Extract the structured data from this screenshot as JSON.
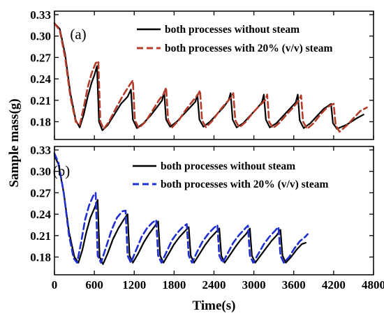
{
  "chart_data": [
    {
      "type": "line",
      "panel_label": "(a)",
      "xlim": [
        0,
        4800
      ],
      "ylim": [
        0.16,
        0.33
      ],
      "x_ticks": [
        0,
        600,
        1200,
        1800,
        2400,
        3000,
        3600,
        4200,
        4800
      ],
      "y_ticks": [
        "0.33",
        "0.30",
        "0.27",
        "0.24",
        "0.21",
        "0.18"
      ],
      "ylabel": "Sample mass(g)",
      "xlabel": "",
      "legend_position": "top-right",
      "series": [
        {
          "name": "both processes without steam",
          "color": "#000000",
          "style": "solid",
          "points": [
            [
              0,
              0.318
            ],
            [
              80,
              0.31
            ],
            [
              160,
              0.275
            ],
            [
              240,
              0.22
            ],
            [
              320,
              0.182
            ],
            [
              380,
              0.172
            ],
            [
              440,
              0.19
            ],
            [
              500,
              0.215
            ],
            [
              560,
              0.235
            ],
            [
              600,
              0.245
            ],
            [
              640,
              0.258
            ],
            [
              670,
              0.18
            ],
            [
              720,
              0.168
            ],
            [
              800,
              0.175
            ],
            [
              900,
              0.19
            ],
            [
              1000,
              0.205
            ],
            [
              1100,
              0.215
            ],
            [
              1150,
              0.225
            ],
            [
              1180,
              0.183
            ],
            [
              1240,
              0.171
            ],
            [
              1340,
              0.178
            ],
            [
              1440,
              0.188
            ],
            [
              1540,
              0.2
            ],
            [
              1620,
              0.21
            ],
            [
              1650,
              0.222
            ],
            [
              1680,
              0.183
            ],
            [
              1740,
              0.173
            ],
            [
              1840,
              0.18
            ],
            [
              1940,
              0.19
            ],
            [
              2040,
              0.2
            ],
            [
              2120,
              0.208
            ],
            [
              2150,
              0.218
            ],
            [
              2180,
              0.183
            ],
            [
              2240,
              0.173
            ],
            [
              2340,
              0.18
            ],
            [
              2440,
              0.19
            ],
            [
              2540,
              0.2
            ],
            [
              2620,
              0.21
            ],
            [
              2650,
              0.22
            ],
            [
              2680,
              0.183
            ],
            [
              2740,
              0.172
            ],
            [
              2840,
              0.178
            ],
            [
              2940,
              0.188
            ],
            [
              3040,
              0.198
            ],
            [
              3120,
              0.207
            ],
            [
              3150,
              0.218
            ],
            [
              3180,
              0.183
            ],
            [
              3240,
              0.172
            ],
            [
              3340,
              0.178
            ],
            [
              3440,
              0.188
            ],
            [
              3540,
              0.198
            ],
            [
              3630,
              0.207
            ],
            [
              3660,
              0.218
            ],
            [
              3690,
              0.182
            ],
            [
              3750,
              0.171
            ],
            [
              3850,
              0.178
            ],
            [
              3950,
              0.188
            ],
            [
              4050,
              0.198
            ],
            [
              4130,
              0.203
            ],
            [
              4160,
              0.205
            ],
            [
              4190,
              0.178
            ],
            [
              4250,
              0.17
            ],
            [
              4400,
              0.176
            ],
            [
              4550,
              0.185
            ],
            [
              4650,
              0.19
            ]
          ]
        },
        {
          "name": "both processes with 20% (v/v) steam",
          "color": "#b43c2a",
          "style": "dashed",
          "points": [
            [
              0,
              0.318
            ],
            [
              80,
              0.308
            ],
            [
              160,
              0.27
            ],
            [
              240,
              0.215
            ],
            [
              320,
              0.18
            ],
            [
              380,
              0.175
            ],
            [
              440,
              0.2
            ],
            [
              500,
              0.228
            ],
            [
              560,
              0.248
            ],
            [
              620,
              0.262
            ],
            [
              660,
              0.265
            ],
            [
              690,
              0.18
            ],
            [
              740,
              0.17
            ],
            [
              820,
              0.18
            ],
            [
              920,
              0.198
            ],
            [
              1020,
              0.215
            ],
            [
              1120,
              0.23
            ],
            [
              1180,
              0.238
            ],
            [
              1210,
              0.182
            ],
            [
              1270,
              0.171
            ],
            [
              1370,
              0.18
            ],
            [
              1470,
              0.195
            ],
            [
              1570,
              0.21
            ],
            [
              1650,
              0.22
            ],
            [
              1680,
              0.228
            ],
            [
              1710,
              0.182
            ],
            [
              1770,
              0.172
            ],
            [
              1870,
              0.182
            ],
            [
              1970,
              0.196
            ],
            [
              2070,
              0.208
            ],
            [
              2160,
              0.218
            ],
            [
              2190,
              0.224
            ],
            [
              2220,
              0.182
            ],
            [
              2280,
              0.172
            ],
            [
              2380,
              0.182
            ],
            [
              2480,
              0.195
            ],
            [
              2580,
              0.206
            ],
            [
              2660,
              0.214
            ],
            [
              2690,
              0.22
            ],
            [
              2720,
              0.182
            ],
            [
              2780,
              0.172
            ],
            [
              2880,
              0.18
            ],
            [
              2980,
              0.192
            ],
            [
              3080,
              0.202
            ],
            [
              3170,
              0.21
            ],
            [
              3200,
              0.218
            ],
            [
              3230,
              0.18
            ],
            [
              3290,
              0.171
            ],
            [
              3390,
              0.179
            ],
            [
              3490,
              0.19
            ],
            [
              3590,
              0.2
            ],
            [
              3680,
              0.21
            ],
            [
              3710,
              0.217
            ],
            [
              3740,
              0.18
            ],
            [
              3800,
              0.17
            ],
            [
              3900,
              0.178
            ],
            [
              4000,
              0.19
            ],
            [
              4100,
              0.2
            ],
            [
              4170,
              0.204
            ],
            [
              4200,
              0.205
            ],
            [
              4230,
              0.175
            ],
            [
              4290,
              0.166
            ],
            [
              4400,
              0.175
            ],
            [
              4500,
              0.185
            ],
            [
              4600,
              0.195
            ],
            [
              4700,
              0.2
            ]
          ]
        }
      ]
    },
    {
      "type": "line",
      "panel_label": "(b)",
      "xlim": [
        0,
        4800
      ],
      "ylim": [
        0.16,
        0.33
      ],
      "x_ticks": [
        0,
        600,
        1200,
        1800,
        2400,
        3000,
        3600,
        4200,
        4800
      ],
      "y_ticks": [
        "0.33",
        "0.30",
        "0.27",
        "0.24",
        "0.21",
        "0.18"
      ],
      "ylabel": "",
      "xlabel": "Time(s)",
      "legend_position": "top-right",
      "series": [
        {
          "name": "both processes without steam",
          "color": "#000000",
          "style": "solid",
          "points": [
            [
              0,
              0.322
            ],
            [
              60,
              0.31
            ],
            [
              140,
              0.27
            ],
            [
              220,
              0.215
            ],
            [
              300,
              0.18
            ],
            [
              360,
              0.172
            ],
            [
              420,
              0.19
            ],
            [
              480,
              0.215
            ],
            [
              540,
              0.235
            ],
            [
              600,
              0.248
            ],
            [
              650,
              0.26
            ],
            [
              680,
              0.18
            ],
            [
              730,
              0.17
            ],
            [
              800,
              0.185
            ],
            [
              880,
              0.205
            ],
            [
              960,
              0.22
            ],
            [
              1040,
              0.232
            ],
            [
              1100,
              0.24
            ],
            [
              1130,
              0.182
            ],
            [
              1180,
              0.172
            ],
            [
              1260,
              0.185
            ],
            [
              1340,
              0.2
            ],
            [
              1420,
              0.212
            ],
            [
              1500,
              0.222
            ],
            [
              1560,
              0.23
            ],
            [
              1590,
              0.182
            ],
            [
              1640,
              0.172
            ],
            [
              1720,
              0.185
            ],
            [
              1800,
              0.198
            ],
            [
              1880,
              0.208
            ],
            [
              1960,
              0.216
            ],
            [
              2020,
              0.222
            ],
            [
              2050,
              0.182
            ],
            [
              2100,
              0.172
            ],
            [
              2180,
              0.184
            ],
            [
              2260,
              0.196
            ],
            [
              2340,
              0.206
            ],
            [
              2420,
              0.214
            ],
            [
              2480,
              0.22
            ],
            [
              2510,
              0.182
            ],
            [
              2560,
              0.172
            ],
            [
              2640,
              0.183
            ],
            [
              2720,
              0.194
            ],
            [
              2800,
              0.204
            ],
            [
              2880,
              0.212
            ],
            [
              2940,
              0.22
            ],
            [
              2970,
              0.182
            ],
            [
              3020,
              0.172
            ],
            [
              3100,
              0.182
            ],
            [
              3180,
              0.192
            ],
            [
              3260,
              0.202
            ],
            [
              3340,
              0.21
            ],
            [
              3400,
              0.218
            ],
            [
              3430,
              0.182
            ],
            [
              3480,
              0.172
            ],
            [
              3560,
              0.18
            ],
            [
              3640,
              0.19
            ],
            [
              3720,
              0.198
            ],
            [
              3780,
              0.2
            ]
          ]
        },
        {
          "name": "both processes with 20% (v/v) steam",
          "color": "#1f2fd0",
          "style": "dashed",
          "points": [
            [
              0,
              0.325
            ],
            [
              60,
              0.312
            ],
            [
              140,
              0.27
            ],
            [
              220,
              0.21
            ],
            [
              290,
              0.178
            ],
            [
              340,
              0.172
            ],
            [
              400,
              0.2
            ],
            [
              460,
              0.232
            ],
            [
              520,
              0.252
            ],
            [
              580,
              0.265
            ],
            [
              620,
              0.27
            ],
            [
              650,
              0.182
            ],
            [
              700,
              0.172
            ],
            [
              780,
              0.195
            ],
            [
              860,
              0.218
            ],
            [
              940,
              0.235
            ],
            [
              1020,
              0.244
            ],
            [
              1070,
              0.245
            ],
            [
              1100,
              0.182
            ],
            [
              1150,
              0.172
            ],
            [
              1230,
              0.19
            ],
            [
              1310,
              0.208
            ],
            [
              1390,
              0.22
            ],
            [
              1470,
              0.228
            ],
            [
              1530,
              0.232
            ],
            [
              1560,
              0.182
            ],
            [
              1610,
              0.172
            ],
            [
              1690,
              0.188
            ],
            [
              1770,
              0.204
            ],
            [
              1850,
              0.214
            ],
            [
              1930,
              0.222
            ],
            [
              1990,
              0.226
            ],
            [
              2020,
              0.182
            ],
            [
              2070,
              0.172
            ],
            [
              2150,
              0.188
            ],
            [
              2230,
              0.202
            ],
            [
              2310,
              0.212
            ],
            [
              2390,
              0.22
            ],
            [
              2450,
              0.225
            ],
            [
              2480,
              0.182
            ],
            [
              2530,
              0.172
            ],
            [
              2610,
              0.186
            ],
            [
              2690,
              0.2
            ],
            [
              2770,
              0.21
            ],
            [
              2850,
              0.218
            ],
            [
              2910,
              0.224
            ],
            [
              2940,
              0.182
            ],
            [
              2990,
              0.172
            ],
            [
              3070,
              0.185
            ],
            [
              3150,
              0.198
            ],
            [
              3230,
              0.208
            ],
            [
              3310,
              0.216
            ],
            [
              3370,
              0.222
            ],
            [
              3400,
              0.182
            ],
            [
              3450,
              0.172
            ],
            [
              3530,
              0.18
            ],
            [
              3610,
              0.192
            ],
            [
              3690,
              0.202
            ],
            [
              3770,
              0.208
            ],
            [
              3810,
              0.212
            ]
          ]
        }
      ]
    }
  ]
}
